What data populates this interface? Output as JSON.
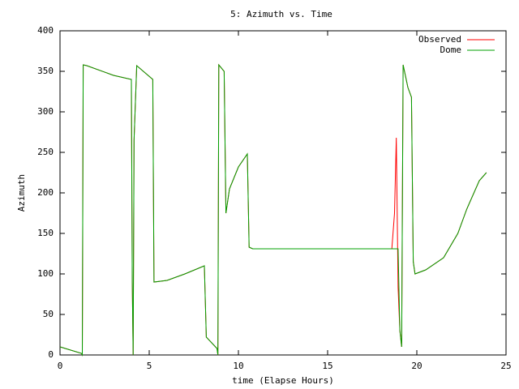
{
  "chart_data": {
    "type": "line",
    "title": "5: Azimuth vs. Time",
    "x_label": "time (Elapse Hours)",
    "y_label": "Azimuth",
    "x": [
      0,
      1.2,
      1.25,
      1.3,
      1.5,
      3,
      4.0,
      4.05,
      4.1,
      4.15,
      4.3,
      5.2,
      5.27,
      6,
      7,
      8.09,
      8.2,
      8.8,
      8.85,
      8.9,
      9.2,
      9.3,
      9.5,
      10,
      10.5,
      10.6,
      10.8,
      18.6,
      18.75,
      18.85,
      18.95,
      19.05,
      19.15,
      19.23,
      19.5,
      19.7,
      19.8,
      19.9,
      20.5,
      21.5,
      22.3,
      22.8,
      23.5,
      23.9
    ],
    "series": [
      {
        "name": "Observed",
        "color": "#ff0000",
        "values": [
          10,
          2,
          0,
          358,
          357,
          345,
          340,
          90,
          0,
          265,
          357,
          340,
          90,
          92,
          100,
          110,
          22,
          8,
          0,
          358,
          350,
          175,
          205,
          232,
          248,
          133,
          131,
          131,
          175,
          268,
          83,
          30,
          10,
          358,
          330,
          318,
          115,
          100,
          105,
          120,
          150,
          180,
          215,
          225
        ]
      },
      {
        "name": "Dome",
        "color": "#00a000",
        "values": [
          10,
          2,
          0,
          358,
          357,
          345,
          340,
          90,
          0,
          265,
          357,
          340,
          90,
          92,
          100,
          110,
          22,
          8,
          0,
          358,
          350,
          175,
          205,
          232,
          248,
          133,
          131,
          131,
          131,
          131,
          131,
          30,
          10,
          358,
          330,
          318,
          115,
          100,
          105,
          120,
          150,
          180,
          215,
          225
        ]
      }
    ],
    "xlim": [
      0,
      25
    ],
    "xticks": [
      0,
      5,
      10,
      15,
      20,
      25
    ],
    "ylim": [
      0,
      400
    ],
    "yticks": [
      0,
      50,
      100,
      150,
      200,
      250,
      300,
      350,
      400
    ],
    "grid": false,
    "legend": "top-right"
  }
}
